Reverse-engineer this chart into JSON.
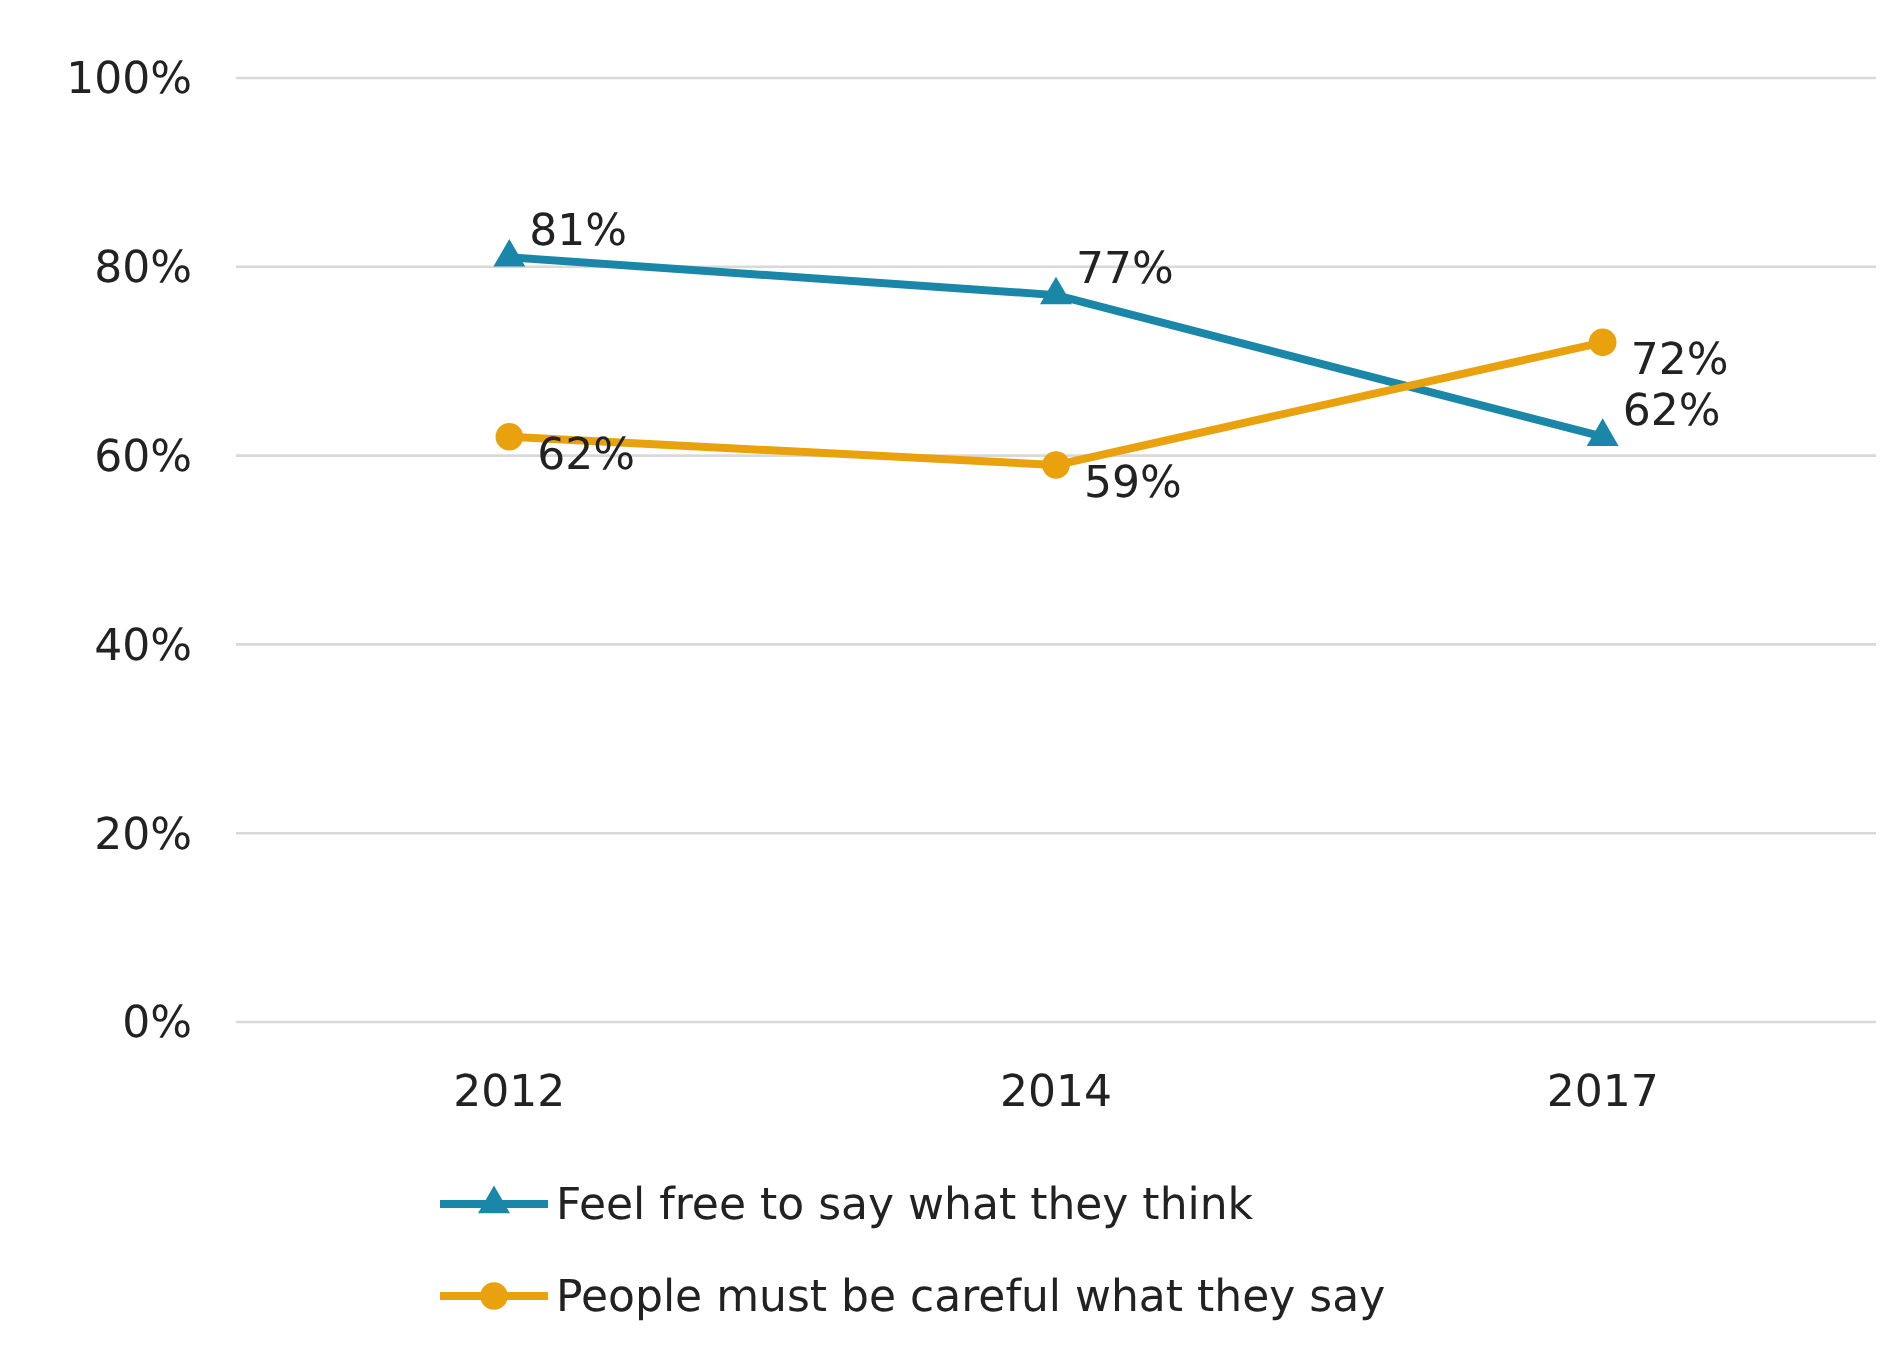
{
  "chart_data": {
    "type": "line",
    "categories": [
      "2012",
      "2014",
      "2017"
    ],
    "series": [
      {
        "name": "Feel free to say what they think",
        "color": "#1a86a8",
        "values": [
          81,
          77,
          62
        ],
        "value_labels": [
          "81%",
          "77%",
          "62%"
        ],
        "marker": "triangle"
      },
      {
        "name": "People must be careful what they say",
        "color": "#e9a20d",
        "values": [
          62,
          59,
          72
        ],
        "value_labels": [
          "62%",
          "59%",
          "72%"
        ],
        "marker": "circle"
      }
    ],
    "ylim": [
      0,
      100
    ],
    "yticks": [
      {
        "value": 0,
        "label": "0%"
      },
      {
        "value": 20,
        "label": "20%"
      },
      {
        "value": 40,
        "label": "40%"
      },
      {
        "value": 60,
        "label": "60%"
      },
      {
        "value": 80,
        "label": "80%"
      },
      {
        "value": 100,
        "label": "100%"
      }
    ],
    "grid": "y",
    "legend": "bottom",
    "line_style": "solid"
  }
}
